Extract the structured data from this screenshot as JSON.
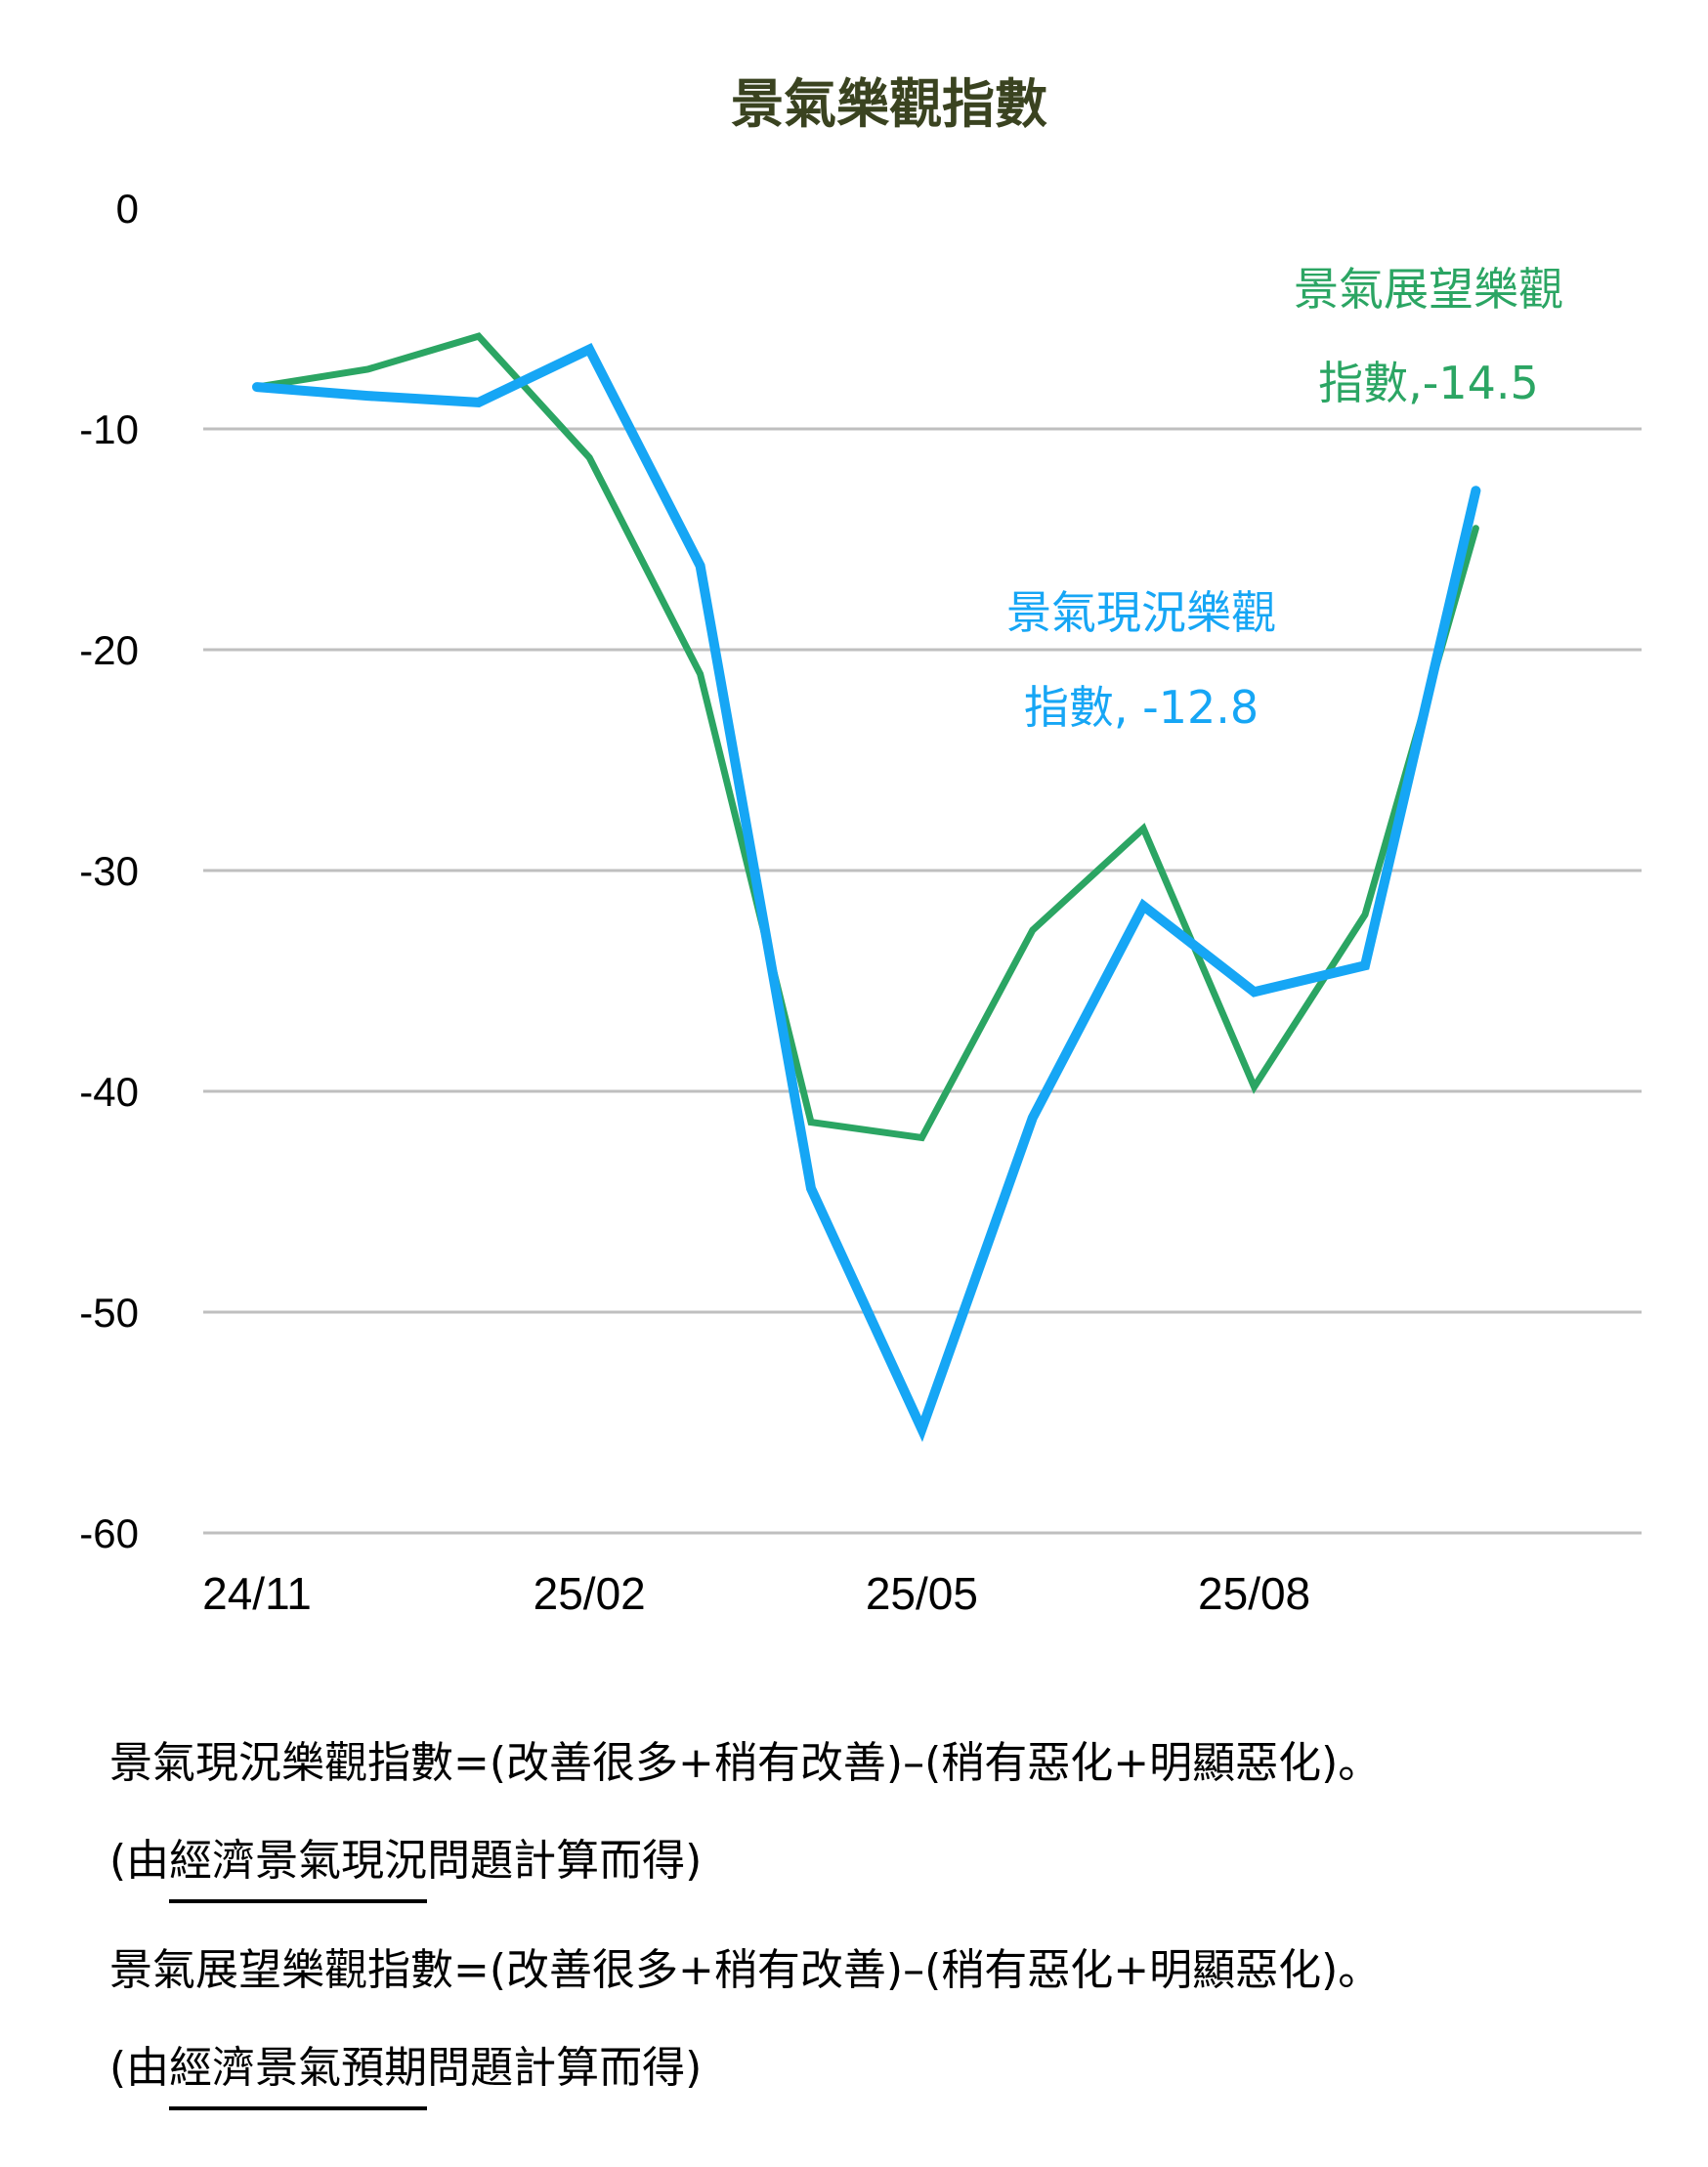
{
  "chart_data": {
    "type": "line",
    "title": "景氣樂觀指數",
    "xlabel": "",
    "ylabel": "",
    "ylim": [
      -60,
      0
    ],
    "yticks": [
      0,
      -10,
      -20,
      -30,
      -40,
      -50,
      -60
    ],
    "grid": true,
    "x": [
      "24/11",
      "24/12",
      "25/01",
      "25/02",
      "25/03",
      "25/04",
      "25/05",
      "25/06",
      "25/07",
      "25/08",
      "25/09",
      "25/10"
    ],
    "xtick_labels": [
      {
        "index": 0,
        "label": "24/11"
      },
      {
        "index": 3,
        "label": "25/02"
      },
      {
        "index": 6,
        "label": "25/05"
      },
      {
        "index": 9,
        "label": "25/08"
      }
    ],
    "series": [
      {
        "name": "景氣現況樂觀指數",
        "color": "#16a6f5",
        "values": [
          -8.1,
          -8.5,
          -8.8,
          -6.4,
          -16.2,
          -44.4,
          -55.3,
          -41.2,
          -31.6,
          -35.5,
          -34.3,
          -12.8
        ]
      },
      {
        "name": "景氣展望樂觀指數",
        "color": "#2ba563",
        "values": [
          -8.1,
          -7.3,
          -5.8,
          -11.3,
          -21.1,
          -41.4,
          -42.1,
          -32.7,
          -28.1,
          -39.8,
          -32.0,
          -14.5
        ]
      }
    ],
    "annotations": [
      {
        "series": "景氣展望樂觀指數",
        "line1": "景氣展望樂觀",
        "line2": "指數,-14.5",
        "color": "#2ba563"
      },
      {
        "series": "景氣現況樂觀指數",
        "line1": "景氣現況樂觀",
        "line2": "指數, -12.8",
        "color": "#16a6f5"
      }
    ],
    "legend": "none"
  },
  "notes": {
    "current": {
      "formula": "景氣現況樂觀指數=(改善很多+稍有改善)–(稍有惡化+明顯惡化)。",
      "source_prefix": "(由",
      "source_underlined": "經濟景氣現況",
      "source_suffix": "問題計算而得)"
    },
    "outlook": {
      "formula": "景氣展望樂觀指數=(改善很多+稍有改善)–(稍有惡化+明顯惡化)。",
      "source_prefix": "(由",
      "source_underlined": "經濟景氣預期",
      "source_suffix": "問題計算而得)"
    }
  },
  "colors": {
    "title": "#3a4320",
    "grid": "#bfbfbf",
    "current": "#16a6f5",
    "outlook": "#2ba563"
  }
}
